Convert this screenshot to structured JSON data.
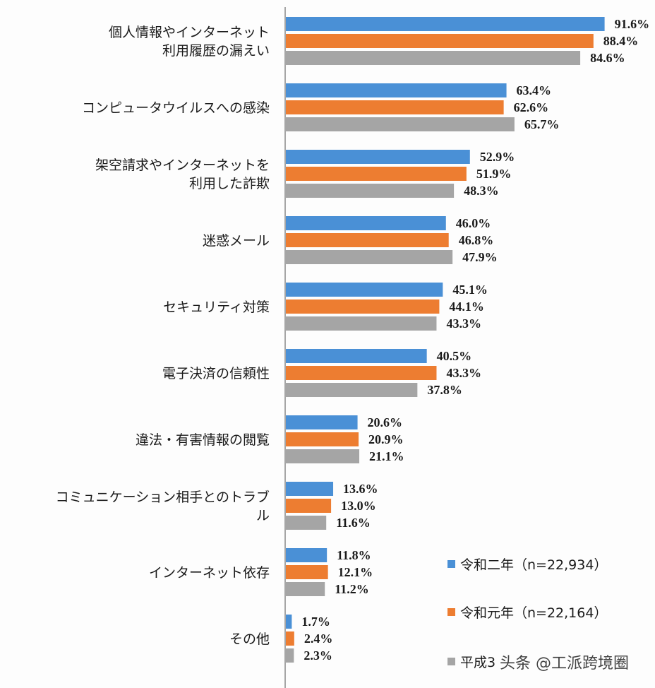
{
  "chart_data": {
    "type": "bar",
    "orientation": "horizontal",
    "categories": [
      [
        "個人情報やインターネット",
        "利用履歴の漏えい"
      ],
      [
        "コンピュータウイルスへの感染"
      ],
      [
        "架空請求やインターネットを",
        "利用した詐欺"
      ],
      [
        "迷惑メール"
      ],
      [
        "セキュリティ対策"
      ],
      [
        "電子決済の信頼性"
      ],
      [
        "違法・有害情報の閲覧"
      ],
      [
        "コミュニケーション相手とのトラブ",
        "ル"
      ],
      [
        "インターネット依存"
      ],
      [
        "その他"
      ]
    ],
    "series": [
      {
        "name": "令和二年（n=22,934）",
        "color": "#4a90d6",
        "values": [
          91.6,
          63.4,
          52.9,
          46.0,
          45.1,
          40.5,
          20.6,
          13.6,
          11.8,
          1.7
        ]
      },
      {
        "name": "令和元年（n=22,164）",
        "color": "#ed7d31",
        "values": [
          88.4,
          62.6,
          51.9,
          46.8,
          44.1,
          43.3,
          20.9,
          13.0,
          12.1,
          2.4
        ]
      },
      {
        "name": "平成3",
        "color": "#a5a5a5",
        "values": [
          84.6,
          65.7,
          48.3,
          47.9,
          43.3,
          37.8,
          21.1,
          11.6,
          11.2,
          2.3
        ]
      }
    ],
    "value_format": "%",
    "xlim": [
      0,
      100
    ],
    "grid": false,
    "legend_position": "bottom-right",
    "watermark": "头条 @工派跨境圈"
  }
}
